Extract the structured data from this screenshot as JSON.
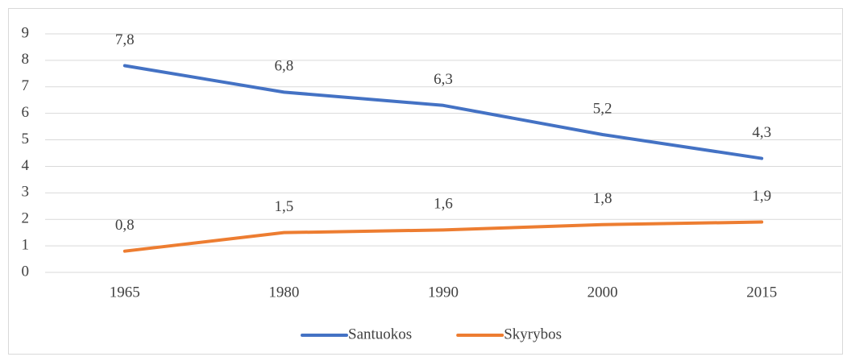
{
  "chart_data": {
    "type": "line",
    "categories": [
      "1965",
      "1980",
      "1990",
      "2000",
      "2015"
    ],
    "series": [
      {
        "name": "Santuokos",
        "color": "#4472c4",
        "values": [
          7.8,
          6.8,
          6.3,
          5.2,
          4.3
        ],
        "value_labels": [
          "7,8",
          "6,8",
          "6,3",
          "5,2",
          "4,3"
        ]
      },
      {
        "name": "Skyrybos",
        "color": "#ed7d31",
        "values": [
          0.8,
          1.5,
          1.6,
          1.8,
          1.9
        ],
        "value_labels": [
          "0,8",
          "1,5",
          "1,6",
          "1,8",
          "1,9"
        ]
      }
    ],
    "ylim": [
      0,
      9
    ],
    "yticks": [
      0,
      1,
      2,
      3,
      4,
      5,
      6,
      7,
      8,
      9
    ],
    "grid": true,
    "legend": "bottom"
  }
}
